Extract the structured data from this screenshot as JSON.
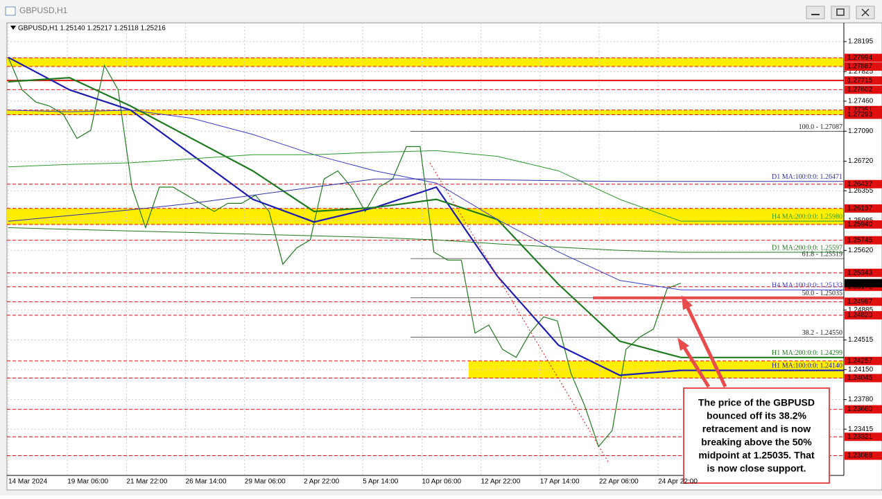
{
  "window": {
    "title": "GBPUSD,H1"
  },
  "chart_data": {
    "type": "line",
    "title": "GBPUSD,H1  1.25140 1.25217 1.25118 1.25216",
    "time_labels": [
      "14 Mar 2024",
      "19 Mar 06:00",
      "21 Mar 22:00",
      "26 Mar 14:00",
      "29 Mar 06:00",
      "2 Apr 22:00",
      "5 Apr 14:00",
      "10 Apr 06:00",
      "12 Apr 22:00",
      "17 Apr 14:00",
      "22 Apr 06:00",
      "24 Apr 22:00"
    ],
    "ylim": [
      1.22853,
      1.28426
    ],
    "yticks": [
      1.28195,
      1.27825,
      {
        "value": 1.2746,
        "label": "1.27460"
      },
      {
        "value": 1.2709,
        "label": "1.27090"
      },
      {
        "value": 1.2672,
        "label": "1.26720"
      },
      1.26355,
      1.25985,
      {
        "value": 1.2562,
        "label": "1.25620"
      },
      1.24885,
      1.24515,
      {
        "value": 1.2415,
        "label": "1.24150"
      },
      {
        "value": 1.2378,
        "label": "1.23780"
      },
      1.23415
    ],
    "grid": true,
    "series": [
      {
        "color": "#1f7a1f",
        "values": [
          1.28,
          1.276,
          1.2745,
          1.274,
          1.273,
          1.27,
          1.271,
          1.279,
          1.276,
          1.264,
          1.259,
          1.264,
          1.264,
          1.263,
          1.262,
          1.261,
          1.262,
          1.262,
          1.263,
          1.261,
          1.2545,
          1.2565,
          1.2575,
          1.265,
          1.266,
          1.264,
          1.261,
          1.264,
          1.265,
          1.269,
          1.269,
          1.256,
          1.255,
          1.255,
          1.246,
          1.247,
          1.244,
          1.243,
          1.246,
          1.248,
          1.2475,
          1.241,
          1.237,
          1.232,
          1.234,
          1.244,
          1.2455,
          1.2465,
          1.2515,
          1.25216
        ]
      },
      {
        "name": "H1 MA:100:0:0: 1.24140",
        "color": "#1c1cb4",
        "values": [
          1.28,
          1.276,
          1.2735,
          1.268,
          1.2625,
          1.2597,
          1.2615,
          1.264,
          1.253,
          1.2445,
          1.2408,
          1.2414
        ]
      },
      {
        "name": "H1 MA:200:0:0: 1.24299",
        "color": "#1e7a1e",
        "values": [
          1.277,
          1.2775,
          1.274,
          1.27,
          1.266,
          1.261,
          1.2615,
          1.2625,
          1.26,
          1.252,
          1.245,
          1.24299
        ]
      },
      {
        "name": "H4 MA:100:0:0: 1.25133",
        "color": "#3a3ad0",
        "values": [
          1.2735,
          1.2733,
          1.2735,
          1.2725,
          1.2705,
          1.268,
          1.266,
          1.2645,
          1.26,
          1.256,
          1.2525,
          1.25133
        ]
      },
      {
        "name": "H4 MA:200:0:0: 1.25980",
        "color": "#2a9a2a",
        "values": [
          1.2665,
          1.2668,
          1.267,
          1.2675,
          1.268,
          1.268,
          1.2683,
          1.2685,
          1.2678,
          1.266,
          1.2625,
          1.2598
        ]
      },
      {
        "name": "D1 MA:100:0:0: 1.26471",
        "color": "#2f2fa8",
        "values": [
          1.2598,
          1.2605,
          1.2612,
          1.262,
          1.263,
          1.264,
          1.265,
          1.265,
          1.2649,
          1.2648,
          1.2647,
          1.26471
        ]
      },
      {
        "name": "D1 MA:200:0:0: 1.25597",
        "color": "#1e7a1e",
        "values": [
          1.259,
          1.2588,
          1.2586,
          1.2584,
          1.2582,
          1.258,
          1.2578,
          1.2575,
          1.257,
          1.2566,
          1.2562,
          1.25597
        ]
      }
    ],
    "levels": [
      1.27994,
      1.27887,
      1.27715,
      1.27602,
      1.27351,
      1.27293,
      1.26437,
      1.26137,
      {
        "value": 1.2594,
        "label": "1.25940"
      },
      1.25745,
      1.25343,
      1.25171,
      1.24987,
      {
        "value": 1.2482,
        "label": "1.24820"
      },
      1.24257,
      1.24045,
      {
        "value": 1.2366,
        "label": "1.23660"
      },
      1.23321,
      1.23088
    ],
    "level_color": "#e01010",
    "zones": [
      [
        1.27994,
        1.27887
      ],
      [
        1.27351,
        1.27293
      ],
      [
        1.26137,
        1.2594
      ],
      [
        1.24257,
        1.24045
      ]
    ],
    "zone_color": "#ffee00",
    "fib_levels": [
      {
        "value": 1.27087,
        "label": "100.0 - 1.27087"
      },
      {
        "value": 1.25519,
        "label": "61.8 - 1.25519"
      },
      {
        "value": 1.25035,
        "label": "50.0 - 1.25035"
      },
      {
        "value": 1.2455,
        "label": "38.2 - 1.24550"
      }
    ],
    "current_price": 1.25216,
    "annotation": [
      "The price of the GBPUSD",
      "bounced off its 38.2%",
      "retracement and is now",
      "breaking above the 50%",
      "midpoint at 1.25035. That",
      "is now close support."
    ]
  }
}
